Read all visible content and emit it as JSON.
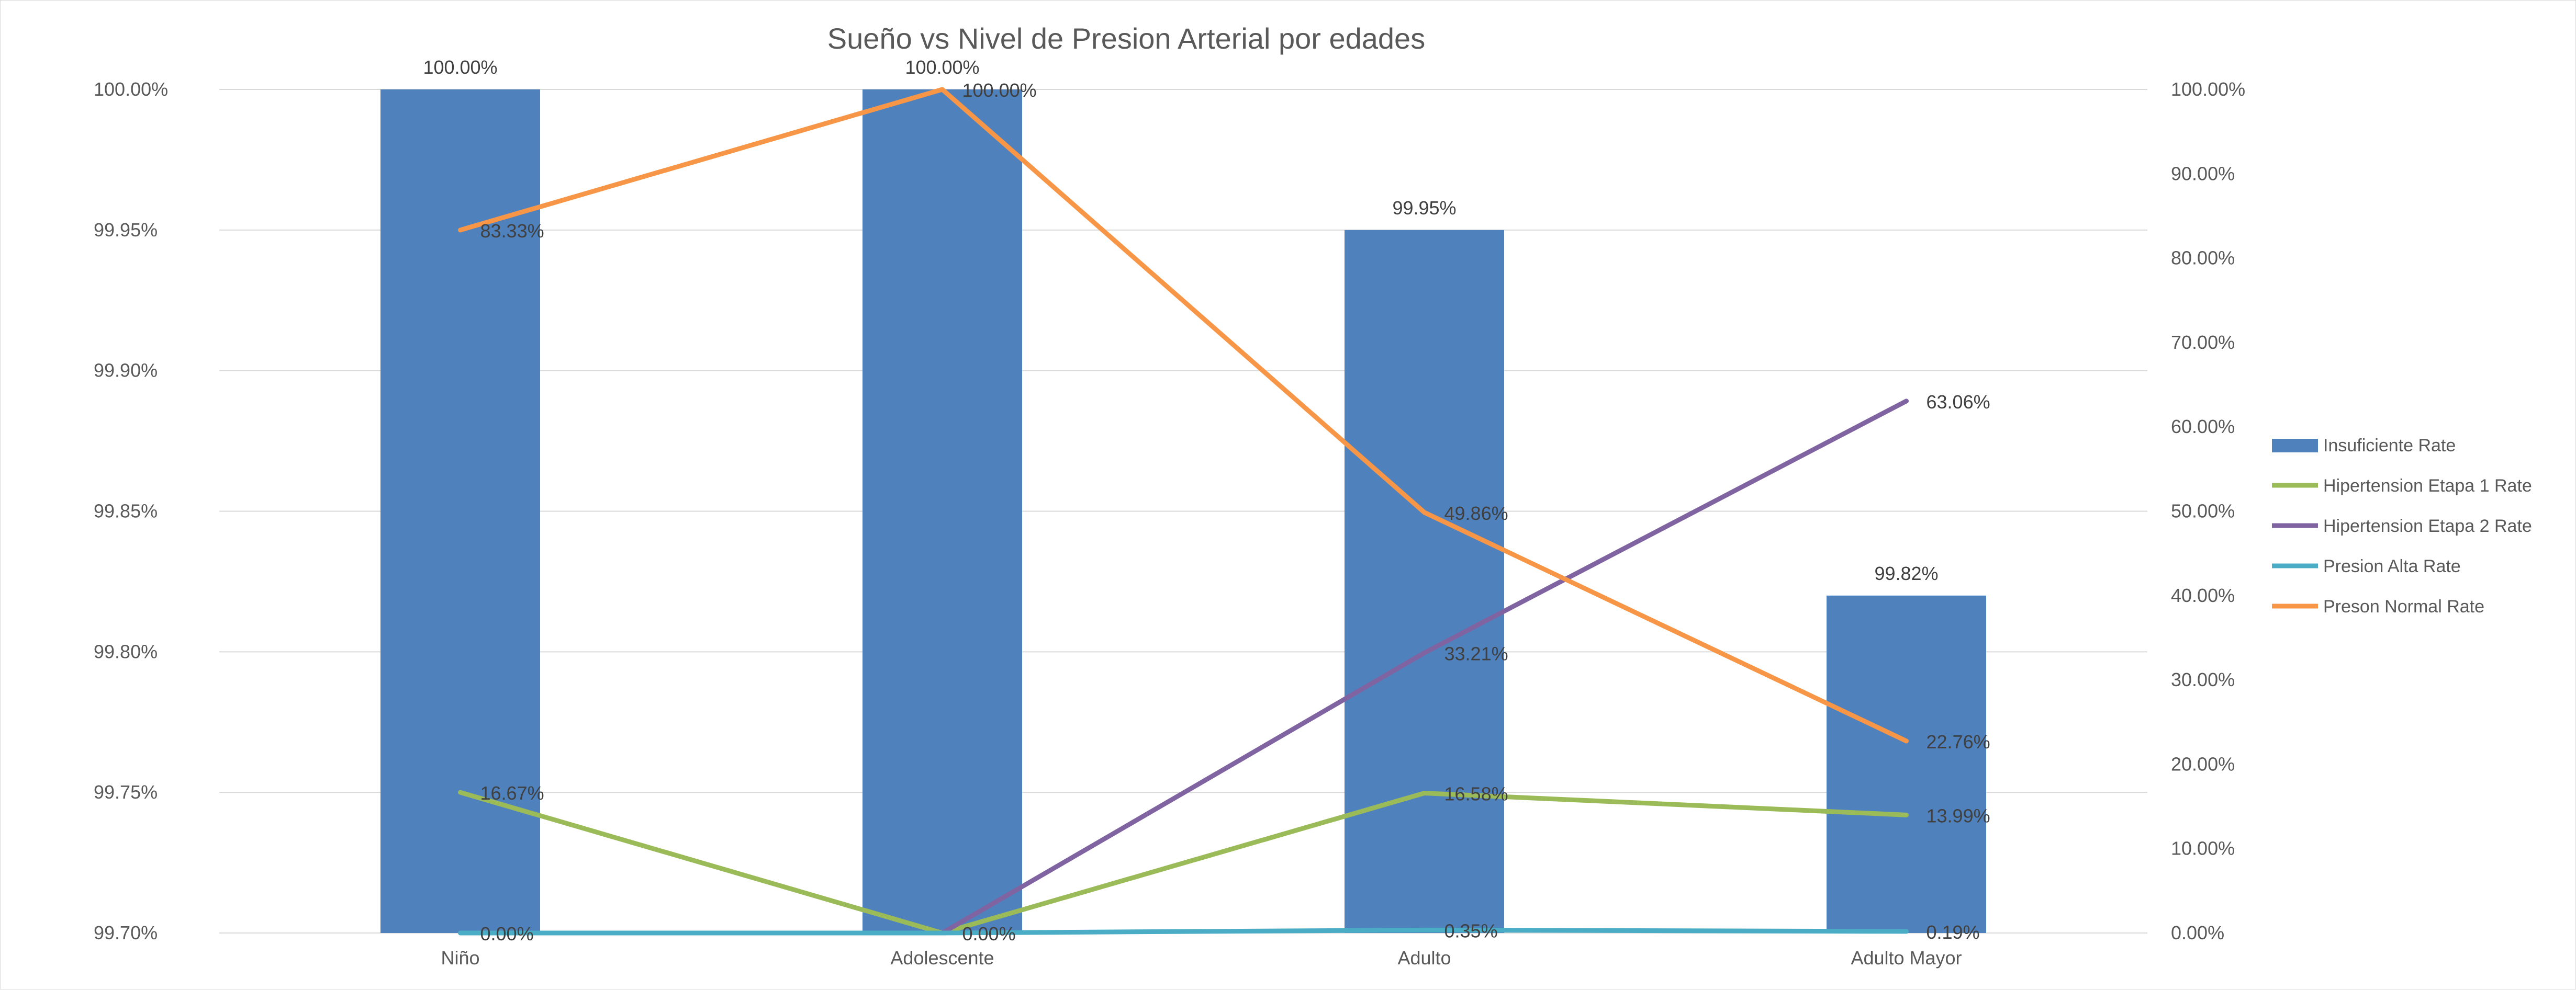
{
  "chart_data": {
    "type": "bar",
    "title": "Sueño vs Nivel de Presion Arterial por edades",
    "categories": [
      "Niño",
      "Adolescente",
      "Adulto",
      "Adulto Mayor"
    ],
    "left_axis": {
      "ylim": [
        99.7,
        100.0
      ],
      "ticks": [
        "99.70%",
        "99.75%",
        "99.80%",
        "99.85%",
        "99.90%",
        "99.95%",
        "100.00%"
      ]
    },
    "right_axis": {
      "ylim": [
        0,
        100
      ],
      "ticks": [
        "0.00%",
        "10.00%",
        "20.00%",
        "30.00%",
        "40.00%",
        "50.00%",
        "60.00%",
        "70.00%",
        "80.00%",
        "90.00%",
        "100.00%"
      ]
    },
    "grid": true,
    "legend_position": "right",
    "bar_series": {
      "name": "Insuficiente Rate",
      "values": [
        100.0,
        100.0,
        99.95,
        99.82
      ],
      "labels": [
        "100.00%",
        "100.00%",
        "99.95%",
        "99.82%"
      ],
      "color": "#4f81bd"
    },
    "line_series": [
      {
        "name": "Hipertension Etapa 1 Rate",
        "values": [
          16.67,
          0.0,
          16.58,
          13.99
        ],
        "labels": [
          "16.67%",
          "",
          "16.58%",
          "13.99%"
        ],
        "color": "#9bbb59"
      },
      {
        "name": "Hipertension Etapa 2 Rate",
        "values": [
          null,
          0.0,
          33.21,
          63.06
        ],
        "labels": [
          "",
          "0.00%",
          "33.21%",
          "63.06%"
        ],
        "color": "#8064a2"
      },
      {
        "name": "Presion Alta Rate",
        "values": [
          0.0,
          0.0,
          0.35,
          0.19
        ],
        "labels": [
          "0.00%",
          "",
          "0.35%",
          "0.19%"
        ],
        "color": "#4bacc6"
      },
      {
        "name": "Preson Normal Rate",
        "values": [
          83.33,
          100.0,
          49.86,
          22.76
        ],
        "labels": [
          "83.33%",
          "100.00%",
          "49.86%",
          "22.76%"
        ],
        "color": "#f79646"
      }
    ]
  }
}
